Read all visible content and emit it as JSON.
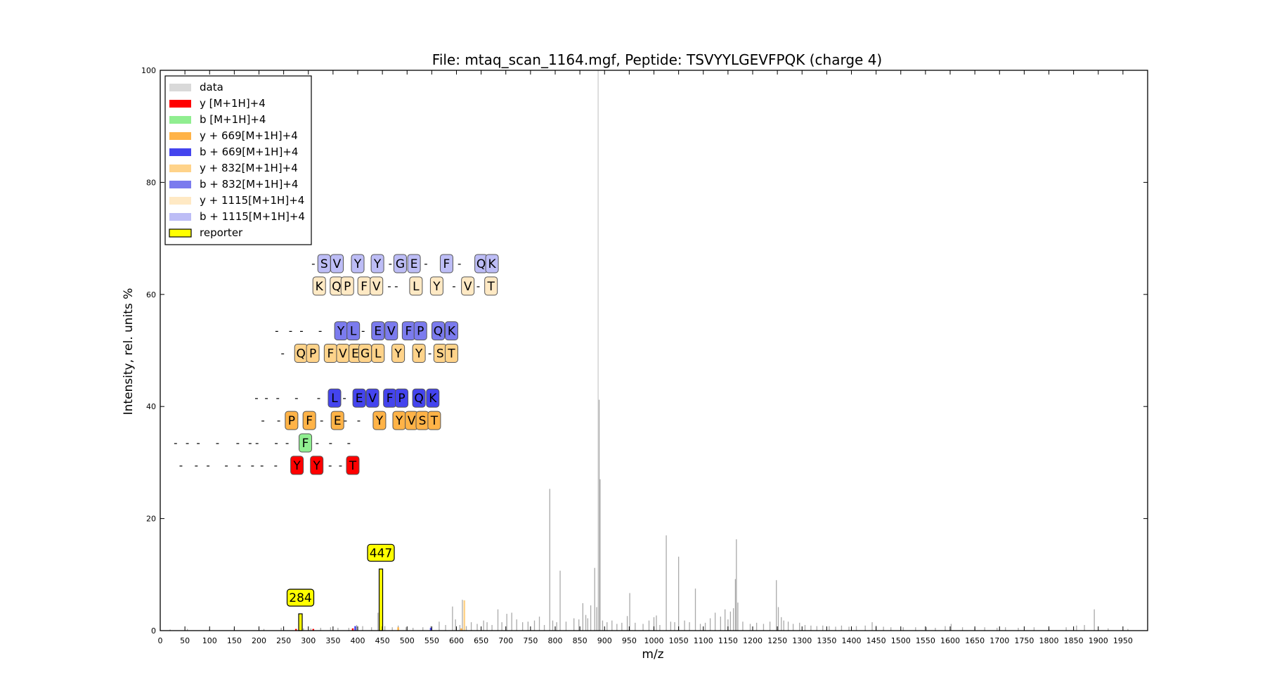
{
  "chart_data": {
    "type": "bar",
    "title": "File: mtaq_scan_1164.mgf, Peptide: TSVYYLGEVFPQK (charge 4)",
    "xlabel": "m/z",
    "ylabel": "Intensity, rel. units %",
    "xlim": [
      0,
      2000
    ],
    "ylim": [
      0,
      100
    ],
    "xticks": [
      "0",
      "50",
      "100",
      "150",
      "200",
      "250",
      "300",
      "350",
      "400",
      "450",
      "500",
      "550",
      "600",
      "650",
      "700",
      "750",
      "800",
      "850",
      "900",
      "950",
      "1000",
      "1050",
      "1100",
      "1150",
      "1200",
      "1250",
      "1300",
      "1350",
      "1400",
      "1450",
      "1500",
      "1550",
      "1600",
      "1650",
      "1700",
      "1750",
      "1800",
      "1850",
      "1900",
      "1950"
    ],
    "yticks": [
      "0",
      "20",
      "40",
      "60",
      "80",
      "100"
    ],
    "grid": false,
    "legend_position": "top-left",
    "legend": [
      {
        "label": "data",
        "color": "#d9d9d9",
        "edge": "none"
      },
      {
        "label": "y [M+1H]+4",
        "color": "#ff0000",
        "edge": "none"
      },
      {
        "label": "b [M+1H]+4",
        "color": "#90ee90",
        "edge": "none"
      },
      {
        "label": "y + 669[M+1H]+4",
        "color": "#ffb347",
        "edge": "none"
      },
      {
        "label": "b + 669[M+1H]+4",
        "color": "#4444ee",
        "edge": "none"
      },
      {
        "label": "y + 832[M+1H]+4",
        "color": "#ffd38a",
        "edge": "none"
      },
      {
        "label": "b + 832[M+1H]+4",
        "color": "#7b7bee",
        "edge": "none"
      },
      {
        "label": "y + 1115[M+1H]+4",
        "color": "#ffe9c4",
        "edge": "none"
      },
      {
        "label": "b + 1115[M+1H]+4",
        "color": "#bdbdf6",
        "edge": "none"
      },
      {
        "label": "reporter",
        "color": "#ffff00",
        "edge": "#000000"
      }
    ],
    "series": [
      {
        "name": "data",
        "color": "#a9a9a9",
        "points": [
          [
            20,
            0.2
          ],
          [
            55,
            0.3
          ],
          [
            100,
            0.2
          ],
          [
            150,
            0.4
          ],
          [
            210,
            0.3
          ],
          [
            245,
            0.5
          ],
          [
            284,
            3.0
          ],
          [
            290,
            0.4
          ],
          [
            305,
            0.4
          ],
          [
            325,
            0.5
          ],
          [
            345,
            0.6
          ],
          [
            360,
            0.5
          ],
          [
            382,
            0.5
          ],
          [
            398,
            1.0
          ],
          [
            410,
            0.8
          ],
          [
            428,
            0.6
          ],
          [
            441,
            3.2
          ],
          [
            447,
            11.0
          ],
          [
            455,
            0.8
          ],
          [
            470,
            0.6
          ],
          [
            482,
            0.9
          ],
          [
            498,
            0.6
          ],
          [
            512,
            0.5
          ],
          [
            532,
            0.6
          ],
          [
            548,
            0.8
          ],
          [
            565,
            1.6
          ],
          [
            578,
            1.0
          ],
          [
            592,
            4.3
          ],
          [
            598,
            2.0
          ],
          [
            607,
            1.0
          ],
          [
            612,
            5.5
          ],
          [
            620,
            0.8
          ],
          [
            630,
            1.5
          ],
          [
            642,
            1.2
          ],
          [
            655,
            1.8
          ],
          [
            662,
            1.5
          ],
          [
            672,
            1.0
          ],
          [
            684,
            3.8
          ],
          [
            692,
            1.5
          ],
          [
            702,
            3.0
          ],
          [
            712,
            3.2
          ],
          [
            722,
            2.0
          ],
          [
            734,
            1.5
          ],
          [
            745,
            1.6
          ],
          [
            758,
            1.8
          ],
          [
            768,
            2.5
          ],
          [
            778,
            1.0
          ],
          [
            789,
            25.3
          ],
          [
            795,
            1.8
          ],
          [
            803,
            1.5
          ],
          [
            810,
            10.7
          ],
          [
            822,
            1.6
          ],
          [
            838,
            2.2
          ],
          [
            848,
            2.0
          ],
          [
            856,
            4.9
          ],
          [
            862,
            2.8
          ],
          [
            866,
            2.2
          ],
          [
            872,
            4.5
          ],
          [
            880,
            11.2
          ],
          [
            884,
            4.2
          ],
          [
            887,
            100
          ],
          [
            889,
            41.2
          ],
          [
            891,
            27.0
          ],
          [
            896,
            1.8
          ],
          [
            905,
            1.5
          ],
          [
            915,
            1.8
          ],
          [
            925,
            1.2
          ],
          [
            935,
            1.4
          ],
          [
            946,
            2.6
          ],
          [
            951,
            6.7
          ],
          [
            962,
            1.4
          ],
          [
            978,
            1.2
          ],
          [
            990,
            1.8
          ],
          [
            1000,
            2.4
          ],
          [
            1005,
            2.7
          ],
          [
            1012,
            1.0
          ],
          [
            1025,
            17.0
          ],
          [
            1034,
            1.6
          ],
          [
            1042,
            1.5
          ],
          [
            1050,
            13.2
          ],
          [
            1062,
            1.8
          ],
          [
            1072,
            1.5
          ],
          [
            1084,
            7.5
          ],
          [
            1094,
            1.2
          ],
          [
            1104,
            1.4
          ],
          [
            1114,
            2.2
          ],
          [
            1124,
            3.2
          ],
          [
            1135,
            2.5
          ],
          [
            1144,
            3.8
          ],
          [
            1150,
            2.0
          ],
          [
            1155,
            3.4
          ],
          [
            1161,
            4.0
          ],
          [
            1165,
            9.2
          ],
          [
            1167,
            16.3
          ],
          [
            1170,
            5.0
          ],
          [
            1180,
            1.6
          ],
          [
            1195,
            1.2
          ],
          [
            1208,
            1.4
          ],
          [
            1222,
            1.2
          ],
          [
            1235,
            1.6
          ],
          [
            1248,
            9.0
          ],
          [
            1252,
            4.2
          ],
          [
            1258,
            2.4
          ],
          [
            1263,
            1.8
          ],
          [
            1272,
            1.6
          ],
          [
            1282,
            1.2
          ],
          [
            1295,
            1.4
          ],
          [
            1306,
            1.0
          ],
          [
            1318,
            0.9
          ],
          [
            1330,
            0.8
          ],
          [
            1342,
            0.9
          ],
          [
            1355,
            0.8
          ],
          [
            1368,
            0.7
          ],
          [
            1380,
            0.9
          ],
          [
            1395,
            0.7
          ],
          [
            1410,
            0.8
          ],
          [
            1428,
            0.9
          ],
          [
            1442,
            1.5
          ],
          [
            1450,
            0.9
          ],
          [
            1465,
            0.7
          ],
          [
            1480,
            0.6
          ],
          [
            1505,
            0.6
          ],
          [
            1530,
            0.6
          ],
          [
            1552,
            0.6
          ],
          [
            1570,
            0.5
          ],
          [
            1590,
            0.8
          ],
          [
            1602,
            1.2
          ],
          [
            1625,
            0.6
          ],
          [
            1650,
            0.5
          ],
          [
            1670,
            0.6
          ],
          [
            1695,
            0.5
          ],
          [
            1712,
            0.6
          ],
          [
            1738,
            0.5
          ],
          [
            1770,
            0.6
          ],
          [
            1800,
            0.4
          ],
          [
            1835,
            0.6
          ],
          [
            1856,
            0.9
          ],
          [
            1872,
            1.0
          ],
          [
            1892,
            3.8
          ],
          [
            1920,
            0.4
          ],
          [
            1960,
            0.3
          ]
        ]
      },
      {
        "name": "y [M+1H]+4",
        "color": "#ff0000",
        "points": [
          [
            275,
            0.3
          ],
          [
            310,
            0.3
          ],
          [
            390,
            0.4
          ]
        ]
      },
      {
        "name": "b + 669[M+1H]+4",
        "color": "#4444ee",
        "points": [
          [
            395,
            0.8
          ],
          [
            548,
            0.5
          ]
        ]
      },
      {
        "name": "y + 669[M+1H]+4",
        "color": "#ffb347",
        "points": [
          [
            482,
            0.6
          ],
          [
            610,
            0.4
          ]
        ]
      },
      {
        "name": "y + 832[M+1H]+4",
        "color": "#ffd38a",
        "points": [
          [
            616,
            5.4
          ]
        ]
      },
      {
        "name": "reporter",
        "color": "#ffff00",
        "points": [
          [
            284,
            3.0
          ],
          [
            447,
            11.0
          ]
        ]
      }
    ],
    "reporter_labels": [
      {
        "x": 284,
        "y": 3.0,
        "label": "284"
      },
      {
        "x": 447,
        "y": 11.0,
        "label": "447"
      }
    ],
    "annotation_rows": [
      {
        "y": 65.5,
        "color": "#bdbdf6",
        "items": [
          {
            "t": "-",
            "x": 310
          },
          {
            "t": "S",
            "x": 332
          },
          {
            "t": "V",
            "x": 358
          },
          {
            "t": "Y",
            "x": 400
          },
          {
            "t": "Y",
            "x": 440
          },
          {
            "t": "-",
            "x": 466
          },
          {
            "t": "G",
            "x": 486
          },
          {
            "t": "E",
            "x": 514
          },
          {
            "t": "-",
            "x": 538
          },
          {
            "t": "F",
            "x": 580
          },
          {
            "t": "-",
            "x": 606
          },
          {
            "t": "Q",
            "x": 650
          },
          {
            "t": "K",
            "x": 672
          }
        ]
      },
      {
        "y": 61.5,
        "color": "#ffe9c4",
        "items": [
          {
            "t": "K",
            "x": 322
          },
          {
            "t": "Q",
            "x": 357
          },
          {
            "t": "P",
            "x": 379
          },
          {
            "t": "F",
            "x": 413
          },
          {
            "t": "V",
            "x": 438
          },
          {
            "t": "-",
            "x": 464
          },
          {
            "t": "-",
            "x": 478
          },
          {
            "t": "L",
            "x": 518
          },
          {
            "t": "Y",
            "x": 560
          },
          {
            "t": "-",
            "x": 595
          },
          {
            "t": "V",
            "x": 623
          },
          {
            "t": "-",
            "x": 644
          },
          {
            "t": "T",
            "x": 670
          }
        ]
      },
      {
        "y": 53.5,
        "color": "#7b7bee",
        "items": [
          {
            "t": "-",
            "x": 236
          },
          {
            "t": "-",
            "x": 264
          },
          {
            "t": "-",
            "x": 286
          },
          {
            "t": "-",
            "x": 324
          },
          {
            "t": "Y",
            "x": 366
          },
          {
            "t": "L",
            "x": 391
          },
          {
            "t": "-",
            "x": 411
          },
          {
            "t": "E",
            "x": 441
          },
          {
            "t": "V",
            "x": 468
          },
          {
            "t": "F",
            "x": 503
          },
          {
            "t": "P",
            "x": 527
          },
          {
            "t": "Q",
            "x": 563
          },
          {
            "t": "K",
            "x": 590
          }
        ]
      },
      {
        "y": 49.5,
        "color": "#ffd38a",
        "items": [
          {
            "t": "-",
            "x": 248
          },
          {
            "t": "Q",
            "x": 285
          },
          {
            "t": "P",
            "x": 309
          },
          {
            "t": "F",
            "x": 345
          },
          {
            "t": "V",
            "x": 370
          },
          {
            "t": "E",
            "x": 395
          },
          {
            "t": "G",
            "x": 415
          },
          {
            "t": "L",
            "x": 441
          },
          {
            "t": "Y",
            "x": 482
          },
          {
            "t": "Y",
            "x": 524
          },
          {
            "t": "-",
            "x": 546
          },
          {
            "t": "S",
            "x": 567
          },
          {
            "t": "T",
            "x": 590
          }
        ]
      },
      {
        "y": 41.5,
        "color": "#4444ee",
        "items": [
          {
            "t": "-",
            "x": 195
          },
          {
            "t": "-",
            "x": 215
          },
          {
            "t": "-",
            "x": 238
          },
          {
            "t": "-",
            "x": 276
          },
          {
            "t": "-",
            "x": 321
          },
          {
            "t": "L",
            "x": 353
          },
          {
            "t": "-",
            "x": 373
          },
          {
            "t": "E",
            "x": 403
          },
          {
            "t": "V",
            "x": 430
          },
          {
            "t": "F",
            "x": 465
          },
          {
            "t": "P",
            "x": 489
          },
          {
            "t": "Q",
            "x": 524
          },
          {
            "t": "K",
            "x": 552
          }
        ]
      },
      {
        "y": 37.5,
        "color": "#ffb347",
        "items": [
          {
            "t": "-",
            "x": 208
          },
          {
            "t": "-",
            "x": 240
          },
          {
            "t": "P",
            "x": 266
          },
          {
            "t": "F",
            "x": 302
          },
          {
            "t": "-",
            "x": 327
          },
          {
            "t": "E",
            "x": 359
          },
          {
            "t": "-",
            "x": 375
          },
          {
            "t": "-",
            "x": 402
          },
          {
            "t": "Y",
            "x": 444
          },
          {
            "t": "Y",
            "x": 484
          },
          {
            "t": "V",
            "x": 509
          },
          {
            "t": "S",
            "x": 531
          },
          {
            "t": "T",
            "x": 555
          }
        ]
      },
      {
        "y": 33.5,
        "color": "#90ee90",
        "items": [
          {
            "t": "-",
            "x": 31
          },
          {
            "t": "-",
            "x": 55
          },
          {
            "t": "-",
            "x": 77
          },
          {
            "t": "-",
            "x": 116
          },
          {
            "t": "-",
            "x": 157
          },
          {
            "t": "-",
            "x": 182
          },
          {
            "t": "-",
            "x": 196
          },
          {
            "t": "-",
            "x": 235
          },
          {
            "t": "-",
            "x": 257
          },
          {
            "t": "F",
            "x": 294
          },
          {
            "t": "-",
            "x": 318
          },
          {
            "t": "-",
            "x": 345
          },
          {
            "t": "-",
            "x": 382
          }
        ]
      },
      {
        "y": 29.5,
        "color": "#ff0000",
        "items": [
          {
            "t": "-",
            "x": 42
          },
          {
            "t": "-",
            "x": 73
          },
          {
            "t": "-",
            "x": 97
          },
          {
            "t": "-",
            "x": 134
          },
          {
            "t": "-",
            "x": 160
          },
          {
            "t": "-",
            "x": 187
          },
          {
            "t": "-",
            "x": 206
          },
          {
            "t": "-",
            "x": 234
          },
          {
            "t": "Y",
            "x": 277
          },
          {
            "t": "Y",
            "x": 317
          },
          {
            "t": "-",
            "x": 344
          },
          {
            "t": "-",
            "x": 365
          },
          {
            "t": "T",
            "x": 390
          }
        ]
      }
    ]
  }
}
